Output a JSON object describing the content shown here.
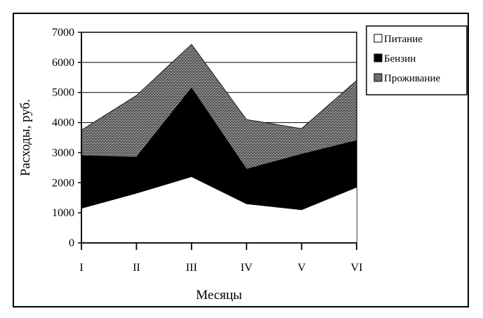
{
  "chart_data": {
    "type": "area",
    "stacked": true,
    "categories": [
      "I",
      "II",
      "III",
      "IV",
      "V",
      "VI"
    ],
    "series": [
      {
        "name": "Питание",
        "values": [
          1150,
          1650,
          2200,
          1300,
          1100,
          1850
        ],
        "color": "#ffffff"
      },
      {
        "name": "Бензин",
        "values": [
          1750,
          1200,
          2950,
          1150,
          1850,
          1550
        ],
        "color": "#000000"
      },
      {
        "name": "Проживание",
        "values": [
          850,
          2050,
          1450,
          1650,
          850,
          2000
        ],
        "color": "#8a8a8a"
      }
    ],
    "xlabel": "Месяцы",
    "ylabel": "Расходы, руб.",
    "ylim": [
      0,
      7000
    ],
    "yticks": [
      "0",
      "1000",
      "2000",
      "3000",
      "4000",
      "5000",
      "6000",
      "7000"
    ],
    "grid": "horizontal",
    "legend_position": "right"
  }
}
